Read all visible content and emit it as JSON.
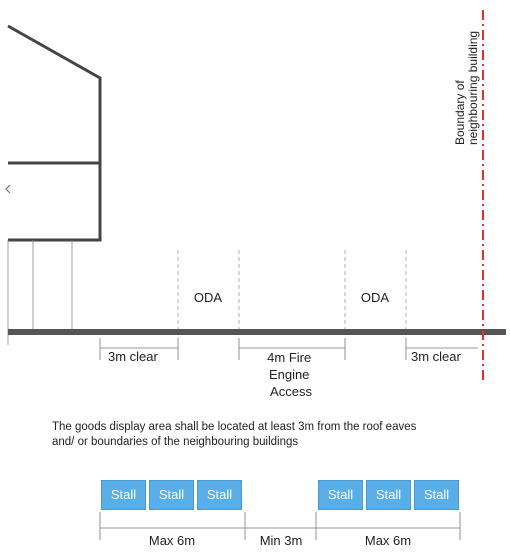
{
  "boundary_label_line1": "Boundary of",
  "boundary_label_line2": "neighbouring building",
  "oda_left": "ODA",
  "oda_right": "ODA",
  "clear_left": "3m clear",
  "clear_right": "3m clear",
  "fire_access": [
    "4m Fire",
    "Engine",
    "Access"
  ],
  "caption_line1": "The goods display area shall be located at least 3m from the roof eaves",
  "caption_line2": "and/ or boundaries of the neighbouring buildings",
  "stalls_left": [
    "Stall",
    "Stall",
    "Stall"
  ],
  "stalls_right": [
    "Stall",
    "Stall",
    "Stall"
  ],
  "dim_max_left": "Max 6m",
  "dim_min": "Min 3m",
  "dim_max_right": "Max 6m",
  "colors": {
    "boundary": "#e53030",
    "stall": "#5aaee8",
    "ground": "#555555"
  }
}
